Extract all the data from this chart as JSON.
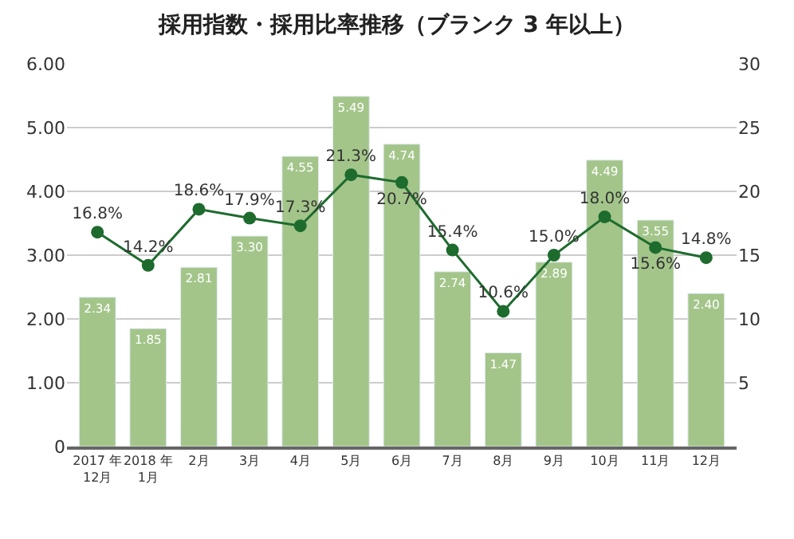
{
  "chart_data": {
    "type": "bar",
    "title": "採用指数・採用比率推移（ブランク 3 年以上）",
    "categories": [
      "2017 年\n12月",
      "2018 年\n1月",
      "2月",
      "3月",
      "4月",
      "5月",
      "6月",
      "7月",
      "8月",
      "9月",
      "10月",
      "11月",
      "12月"
    ],
    "series": [
      {
        "color": "#a3c58a",
        "values": [
          2.34,
          1.85,
          2.81,
          3.3,
          4.55,
          5.49,
          4.74,
          2.74,
          1.47,
          2.89,
          4.49,
          3.55,
          2.4
        ],
        "value_labels": [
          "2.34",
          "1.85",
          "2.81",
          "3.30",
          "4.55",
          "5.49",
          "4.74",
          "2.74",
          "1.47",
          "2.89",
          "4.49",
          "3.55",
          "2.40"
        ]
      },
      {
        "type": "line",
        "axis": "y2",
        "color": "#1e6b2e",
        "marker": "circle",
        "values": [
          16.8,
          14.2,
          18.6,
          17.9,
          17.3,
          21.3,
          20.7,
          15.4,
          10.6,
          15.0,
          18.0,
          15.6,
          14.8
        ],
        "value_labels": [
          "16.8%",
          "14.2%",
          "18.6%",
          "17.9%",
          "17.3%",
          "21.3%",
          "20.7%",
          "15.4%",
          "10.6%",
          "15.0%",
          "18.0%",
          "15.6%",
          "14.8%"
        ]
      }
    ],
    "ylim": [
      0,
      6
    ],
    "yticks": [
      {
        "value": 0,
        "label": "0"
      },
      {
        "value": 1,
        "label": "1.00"
      },
      {
        "value": 2,
        "label": "2.00"
      },
      {
        "value": 3,
        "label": "3.00"
      },
      {
        "value": 4,
        "label": "4.00"
      },
      {
        "value": 5,
        "label": "5.00"
      },
      {
        "value": 6,
        "label": "6.00"
      }
    ],
    "y2lim": [
      0,
      30
    ],
    "y2ticks": [
      5,
      10,
      15,
      20,
      25,
      30
    ],
    "grid": "y"
  }
}
